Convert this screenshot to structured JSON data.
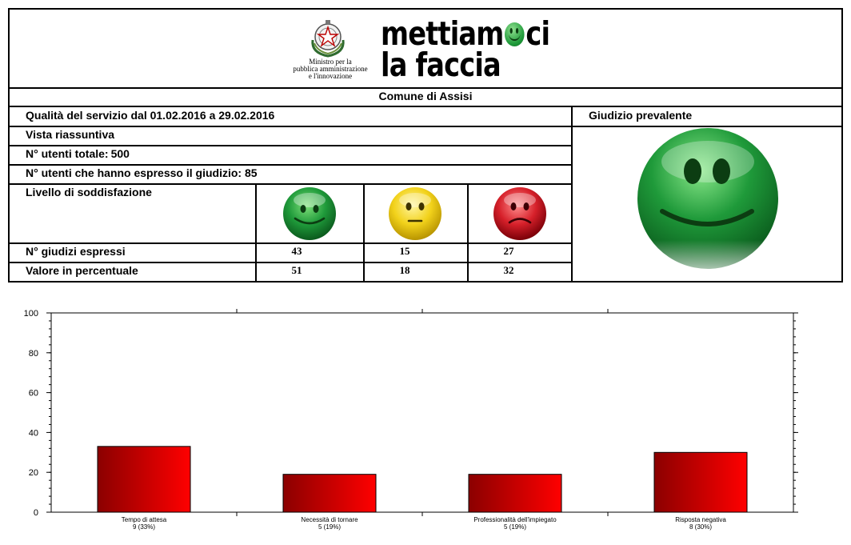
{
  "header": {
    "ministry_lines": [
      "Ministro per la",
      "pubblica amministrazione",
      "e l'innovazione"
    ],
    "brand_line1": "mettiam",
    "brand_line1_end": "ci",
    "brand_line2": "la faccia"
  },
  "comune": "Comune di Assisi",
  "summary": {
    "quality_period": "Qualità del servizio dal 01.02.2016 a 29.02.2016",
    "prevailing_label": "Giudizio prevalente",
    "view_label": "Vista riassuntiva",
    "total_users_label": "N° utenti totale:",
    "total_users_value": "500",
    "users_expressed": "N° utenti che hanno espresso il giudizio: 85",
    "satisfaction_label": "Livello di soddisfazione",
    "judgments_label": "N° giudizi espressi",
    "percent_label": "Valore in percentuale",
    "judgments": [
      "43",
      "15",
      "27"
    ],
    "percentages": [
      "51",
      "18",
      "32"
    ],
    "face_icons": [
      "happy-face-icon",
      "neutral-face-icon",
      "sad-face-icon"
    ],
    "prevailing_icon": "happy-face-icon"
  },
  "colors": {
    "green": "#1f9a3a",
    "yellow": "#f2d21b",
    "red": "#d6202a",
    "bar_dark": "#8b0000",
    "bar_light": "#ff0000"
  },
  "chart_data": {
    "type": "bar",
    "categories": [
      "Tempo di attesa",
      "Necessità di tornare",
      "Professionalità dell'impiegato",
      "Risposta negativa"
    ],
    "category_counts": [
      "9 (33%)",
      "5 (19%)",
      "5 (19%)",
      "8 (30%)"
    ],
    "values": [
      33,
      19,
      19,
      30
    ],
    "ylim": [
      0,
      100
    ],
    "yticks": [
      0,
      20,
      40,
      60,
      80,
      100
    ],
    "grid": false
  }
}
